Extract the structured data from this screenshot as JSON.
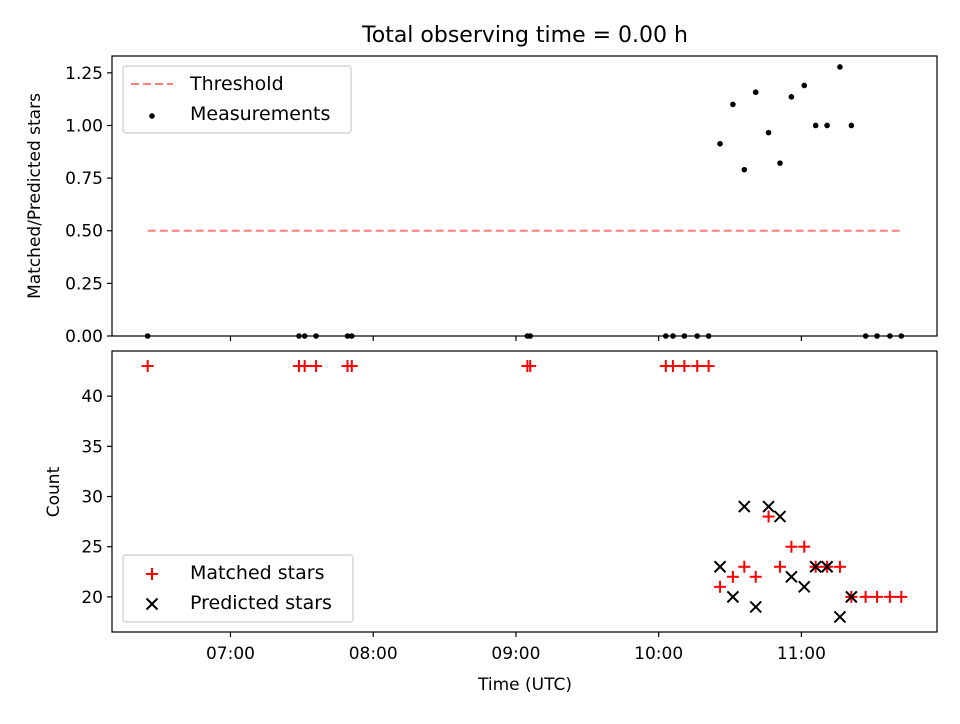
{
  "chart_data": [
    {
      "type": "scatter",
      "title": "Total observing time = 0.00 h",
      "ylabel": "Matched/Predicted stars",
      "xlabel": "",
      "ylim": [
        0.0,
        1.33
      ],
      "yticks": [
        "0.00",
        "0.25",
        "0.50",
        "0.75",
        "1.00",
        "1.25"
      ],
      "ytick_values": [
        0.0,
        0.25,
        0.5,
        0.75,
        1.0,
        1.25
      ],
      "x_unit": "hours UTC",
      "xlim": [
        6.17,
        11.95
      ],
      "legend_position": "upper left",
      "series": [
        {
          "name": "Threshold",
          "style": "dashed line",
          "color": "#ff7f7f",
          "x": [
            6.42,
            11.7
          ],
          "y": [
            0.5,
            0.5
          ]
        },
        {
          "name": "Measurements",
          "style": "dot",
          "color": "#000000",
          "x": [
            6.42,
            7.48,
            7.52,
            7.6,
            7.82,
            7.85,
            9.08,
            9.1,
            10.05,
            10.1,
            10.18,
            10.27,
            10.35,
            10.43,
            10.52,
            10.6,
            10.68,
            10.77,
            10.85,
            10.93,
            11.02,
            11.1,
            11.18,
            11.27,
            11.35,
            11.45,
            11.53,
            11.62,
            11.7
          ],
          "y": [
            0,
            0,
            0,
            0,
            0,
            0,
            0,
            0,
            0,
            0,
            0,
            0,
            0,
            0.913,
            1.1,
            0.79,
            1.158,
            0.966,
            0.821,
            1.136,
            1.19,
            1.0,
            1.0,
            1.278,
            1.0,
            0,
            0,
            0,
            0
          ]
        }
      ]
    },
    {
      "type": "scatter",
      "title": "",
      "ylabel": "Count",
      "xlabel": "Time (UTC)",
      "ylim": [
        16.5,
        44.5
      ],
      "yticks": [
        "20",
        "25",
        "30",
        "35",
        "40"
      ],
      "ytick_values": [
        20,
        25,
        30,
        35,
        40
      ],
      "xticks": [
        "07:00",
        "08:00",
        "09:00",
        "10:00",
        "11:00"
      ],
      "xtick_values": [
        7,
        8,
        9,
        10,
        11
      ],
      "x_unit": "hours UTC",
      "xlim": [
        6.17,
        11.95
      ],
      "legend_position": "lower left",
      "series": [
        {
          "name": "Matched stars",
          "marker": "+",
          "color": "#ff0000",
          "x": [
            6.42,
            7.48,
            7.52,
            7.6,
            7.82,
            7.85,
            9.08,
            9.1,
            10.05,
            10.1,
            10.18,
            10.27,
            10.35,
            10.43,
            10.52,
            10.6,
            10.68,
            10.77,
            10.85,
            10.93,
            11.02,
            11.1,
            11.18,
            11.27,
            11.35,
            11.45,
            11.53,
            11.62,
            11.7
          ],
          "y": [
            43,
            43,
            43,
            43,
            43,
            43,
            43,
            43,
            43,
            43,
            43,
            43,
            43,
            21,
            22,
            23,
            22,
            28,
            23,
            25,
            25,
            23,
            23,
            23,
            20,
            20,
            20,
            20,
            20
          ]
        },
        {
          "name": "Predicted stars",
          "marker": "x",
          "color": "#000000",
          "x": [
            10.43,
            10.52,
            10.6,
            10.68,
            10.77,
            10.85,
            10.93,
            11.02,
            11.1,
            11.18,
            11.27,
            11.35
          ],
          "y": [
            23,
            20,
            29,
            19,
            29,
            28,
            22,
            21,
            23,
            23,
            18,
            20
          ]
        }
      ]
    }
  ]
}
